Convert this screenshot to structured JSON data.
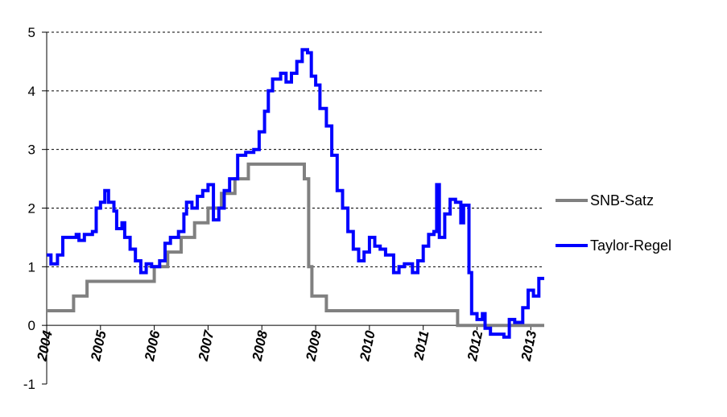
{
  "chart_data": {
    "type": "line",
    "title": "",
    "xlabel": "",
    "ylabel": "",
    "xlim": [
      2004.0,
      2013.25
    ],
    "ylim": [
      -1,
      5
    ],
    "y_ticks": [
      "-1",
      "0",
      "1",
      "2",
      "3",
      "4",
      "5"
    ],
    "x_ticks": [
      "2004",
      "2005",
      "2006",
      "2007",
      "2008",
      "2009",
      "2010",
      "2011",
      "2012",
      "2013"
    ],
    "grid": "horizontal dashed",
    "legend_position": "right",
    "series": [
      {
        "name": "SNB-Satz",
        "color": "#808080",
        "step": true,
        "points": [
          [
            2004.0,
            0.25
          ],
          [
            2004.5,
            0.25
          ],
          [
            2004.5,
            0.5
          ],
          [
            2004.75,
            0.5
          ],
          [
            2004.75,
            0.75
          ],
          [
            2006.0,
            0.75
          ],
          [
            2006.0,
            1.0
          ],
          [
            2006.25,
            1.0
          ],
          [
            2006.25,
            1.25
          ],
          [
            2006.5,
            1.25
          ],
          [
            2006.5,
            1.5
          ],
          [
            2006.75,
            1.5
          ],
          [
            2006.75,
            1.75
          ],
          [
            2007.0,
            1.75
          ],
          [
            2007.0,
            2.0
          ],
          [
            2007.25,
            2.0
          ],
          [
            2007.25,
            2.25
          ],
          [
            2007.5,
            2.25
          ],
          [
            2007.5,
            2.5
          ],
          [
            2007.75,
            2.5
          ],
          [
            2007.75,
            2.75
          ],
          [
            2008.79,
            2.75
          ],
          [
            2008.79,
            2.5
          ],
          [
            2008.87,
            2.5
          ],
          [
            2008.87,
            1.0
          ],
          [
            2008.93,
            1.0
          ],
          [
            2008.93,
            0.5
          ],
          [
            2009.2,
            0.5
          ],
          [
            2009.2,
            0.25
          ],
          [
            2011.64,
            0.25
          ],
          [
            2011.64,
            0.0
          ],
          [
            2013.25,
            0.0
          ]
        ]
      },
      {
        "name": "Taylor-Regel",
        "color": "#0000ff",
        "step": true,
        "points": [
          [
            2004.0,
            1.2
          ],
          [
            2004.08,
            1.05
          ],
          [
            2004.2,
            1.2
          ],
          [
            2004.3,
            1.5
          ],
          [
            2004.55,
            1.55
          ],
          [
            2004.6,
            1.45
          ],
          [
            2004.7,
            1.55
          ],
          [
            2004.85,
            1.6
          ],
          [
            2004.92,
            2.0
          ],
          [
            2005.0,
            2.1
          ],
          [
            2005.08,
            2.3
          ],
          [
            2005.15,
            2.1
          ],
          [
            2005.25,
            1.95
          ],
          [
            2005.3,
            1.65
          ],
          [
            2005.4,
            1.75
          ],
          [
            2005.45,
            1.5
          ],
          [
            2005.55,
            1.3
          ],
          [
            2005.65,
            1.1
          ],
          [
            2005.75,
            0.9
          ],
          [
            2005.85,
            1.05
          ],
          [
            2005.95,
            1.0
          ],
          [
            2006.1,
            1.1
          ],
          [
            2006.2,
            1.4
          ],
          [
            2006.3,
            1.5
          ],
          [
            2006.45,
            1.6
          ],
          [
            2006.55,
            1.9
          ],
          [
            2006.6,
            2.1
          ],
          [
            2006.7,
            2.0
          ],
          [
            2006.8,
            2.2
          ],
          [
            2006.9,
            2.3
          ],
          [
            2007.0,
            2.4
          ],
          [
            2007.1,
            1.8
          ],
          [
            2007.2,
            2.0
          ],
          [
            2007.3,
            2.3
          ],
          [
            2007.4,
            2.5
          ],
          [
            2007.55,
            2.9
          ],
          [
            2007.7,
            2.95
          ],
          [
            2007.85,
            3.0
          ],
          [
            2007.95,
            3.3
          ],
          [
            2008.05,
            3.65
          ],
          [
            2008.12,
            4.0
          ],
          [
            2008.2,
            4.2
          ],
          [
            2008.35,
            4.3
          ],
          [
            2008.45,
            4.15
          ],
          [
            2008.55,
            4.3
          ],
          [
            2008.65,
            4.5
          ],
          [
            2008.75,
            4.7
          ],
          [
            2008.85,
            4.65
          ],
          [
            2008.92,
            4.25
          ],
          [
            2009.0,
            4.1
          ],
          [
            2009.08,
            3.7
          ],
          [
            2009.2,
            3.4
          ],
          [
            2009.3,
            2.9
          ],
          [
            2009.4,
            2.3
          ],
          [
            2009.5,
            2.0
          ],
          [
            2009.6,
            1.6
          ],
          [
            2009.7,
            1.3
          ],
          [
            2009.8,
            1.1
          ],
          [
            2009.9,
            1.25
          ],
          [
            2010.0,
            1.5
          ],
          [
            2010.1,
            1.35
          ],
          [
            2010.2,
            1.3
          ],
          [
            2010.3,
            1.2
          ],
          [
            2010.45,
            0.9
          ],
          [
            2010.55,
            1.0
          ],
          [
            2010.65,
            1.05
          ],
          [
            2010.8,
            0.9
          ],
          [
            2010.9,
            1.1
          ],
          [
            2011.0,
            1.35
          ],
          [
            2011.1,
            1.55
          ],
          [
            2011.2,
            1.6
          ],
          [
            2011.25,
            2.4
          ],
          [
            2011.3,
            1.5
          ],
          [
            2011.4,
            1.9
          ],
          [
            2011.5,
            2.15
          ],
          [
            2011.6,
            2.1
          ],
          [
            2011.7,
            1.75
          ],
          [
            2011.75,
            2.05
          ],
          [
            2011.85,
            0.9
          ],
          [
            2011.9,
            0.2
          ],
          [
            2012.0,
            0.1
          ],
          [
            2012.1,
            0.2
          ],
          [
            2012.15,
            -0.05
          ],
          [
            2012.25,
            -0.15
          ],
          [
            2012.5,
            -0.2
          ],
          [
            2012.6,
            0.1
          ],
          [
            2012.7,
            0.05
          ],
          [
            2012.85,
            0.3
          ],
          [
            2012.95,
            0.6
          ],
          [
            2013.05,
            0.5
          ],
          [
            2013.15,
            0.8
          ],
          [
            2013.25,
            0.8
          ]
        ]
      }
    ]
  }
}
